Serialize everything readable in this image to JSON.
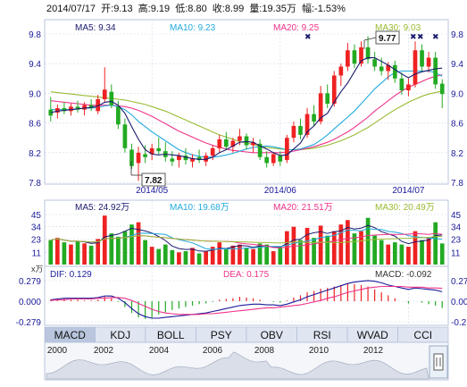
{
  "header": {
    "date": "2014/07/17",
    "open_label": "开:",
    "open": "9.13",
    "high_label": "高:",
    "high": "9.19",
    "low_label": "低:",
    "low": "8.80",
    "close_label": "收:",
    "close": "8.99",
    "volume_label": "量:",
    "volume": "19.35万",
    "change_label": "幅:",
    "change": "-1.53%"
  },
  "price_legend": {
    "ma5": "MA5: 9.34",
    "ma10": "MA10: 9.23",
    "ma20": "MA20: 9.25",
    "ma30": "MA30: 9.03"
  },
  "volume_legend": {
    "ma5": "MA5: 24.92万",
    "ma10": "MA10: 19.68万",
    "ma20": "MA20: 21.51万",
    "ma30": "MA30: 20.49万"
  },
  "macd_legend": {
    "dif": "DIF: 0.129",
    "dea": "DEA: 0.175",
    "macd": "MACD: -0.092",
    "unit": "x万"
  },
  "callouts": {
    "high": "9.77",
    "low": "7.82"
  },
  "tabs": [
    "MACD",
    "KDJ",
    "BOLL",
    "PSY",
    "OBV",
    "RSI",
    "WVAD",
    "CCI"
  ],
  "active_tab": "MACD",
  "timeline_years": [
    "2000",
    "2002",
    "2004",
    "2006",
    "2008",
    "2010",
    "2012"
  ],
  "colors": {
    "up": "#ee2222",
    "down": "#22aa22",
    "ma5": "#1a1a6e",
    "ma10": "#22aadd",
    "ma20": "#ee3388",
    "ma30": "#99bb33",
    "grid": "#cfd8ea",
    "axis_text": "#1a1a99",
    "tab_bg": "#dfe6f2",
    "tab_active": "#b9c6de"
  },
  "chart_data": [
    {
      "type": "candlestick",
      "title": "",
      "x_tick_labels": [
        "2014/05",
        "2014/06",
        "2014/07"
      ],
      "ylim": [
        7.8,
        9.8
      ],
      "y_ticks": [
        7.8,
        8.2,
        8.6,
        9.0,
        9.4,
        9.8
      ],
      "grid": true,
      "candles": [
        {
          "o": 8.78,
          "h": 8.95,
          "l": 8.62,
          "c": 8.7
        },
        {
          "o": 8.74,
          "h": 8.85,
          "l": 8.66,
          "c": 8.8
        },
        {
          "o": 8.8,
          "h": 8.88,
          "l": 8.72,
          "c": 8.76
        },
        {
          "o": 8.76,
          "h": 8.86,
          "l": 8.7,
          "c": 8.82
        },
        {
          "o": 8.82,
          "h": 8.9,
          "l": 8.74,
          "c": 8.78
        },
        {
          "o": 8.78,
          "h": 8.88,
          "l": 8.7,
          "c": 8.84
        },
        {
          "o": 8.84,
          "h": 8.92,
          "l": 8.76,
          "c": 8.8
        },
        {
          "o": 8.76,
          "h": 8.98,
          "l": 8.72,
          "c": 8.92
        },
        {
          "o": 8.92,
          "h": 9.35,
          "l": 8.88,
          "c": 9.05
        },
        {
          "o": 9.02,
          "h": 9.12,
          "l": 8.8,
          "c": 8.84
        },
        {
          "o": 8.82,
          "h": 8.9,
          "l": 8.52,
          "c": 8.58
        },
        {
          "o": 8.58,
          "h": 8.66,
          "l": 8.2,
          "c": 8.26
        },
        {
          "o": 8.24,
          "h": 8.32,
          "l": 7.98,
          "c": 8.02
        },
        {
          "o": 8.06,
          "h": 8.28,
          "l": 7.82,
          "c": 8.2
        },
        {
          "o": 8.18,
          "h": 8.3,
          "l": 8.06,
          "c": 8.14
        },
        {
          "o": 8.18,
          "h": 8.32,
          "l": 8.1,
          "c": 8.26
        },
        {
          "o": 8.26,
          "h": 8.4,
          "l": 8.18,
          "c": 8.22
        },
        {
          "o": 8.22,
          "h": 8.34,
          "l": 8.08,
          "c": 8.14
        },
        {
          "o": 8.12,
          "h": 8.22,
          "l": 8.02,
          "c": 8.08
        },
        {
          "o": 8.1,
          "h": 8.2,
          "l": 8.0,
          "c": 8.16
        },
        {
          "o": 8.16,
          "h": 8.26,
          "l": 8.04,
          "c": 8.1
        },
        {
          "o": 8.08,
          "h": 8.18,
          "l": 8.0,
          "c": 8.12
        },
        {
          "o": 8.14,
          "h": 8.24,
          "l": 8.06,
          "c": 8.1
        },
        {
          "o": 8.08,
          "h": 8.2,
          "l": 8.02,
          "c": 8.16
        },
        {
          "o": 8.16,
          "h": 8.3,
          "l": 8.1,
          "c": 8.26
        },
        {
          "o": 8.26,
          "h": 8.44,
          "l": 8.2,
          "c": 8.38
        },
        {
          "o": 8.38,
          "h": 8.48,
          "l": 8.24,
          "c": 8.28
        },
        {
          "o": 8.28,
          "h": 8.4,
          "l": 8.2,
          "c": 8.36
        },
        {
          "o": 8.36,
          "h": 8.52,
          "l": 8.3,
          "c": 8.42
        },
        {
          "o": 8.42,
          "h": 8.46,
          "l": 8.24,
          "c": 8.3
        },
        {
          "o": 8.3,
          "h": 8.4,
          "l": 8.2,
          "c": 8.34
        },
        {
          "o": 8.32,
          "h": 8.38,
          "l": 8.1,
          "c": 8.14
        },
        {
          "o": 8.14,
          "h": 8.22,
          "l": 8.0,
          "c": 8.06
        },
        {
          "o": 8.06,
          "h": 8.2,
          "l": 8.02,
          "c": 8.18
        },
        {
          "o": 8.16,
          "h": 8.22,
          "l": 8.02,
          "c": 8.08
        },
        {
          "o": 8.1,
          "h": 8.44,
          "l": 8.06,
          "c": 8.4
        },
        {
          "o": 8.4,
          "h": 8.62,
          "l": 8.34,
          "c": 8.56
        },
        {
          "o": 8.56,
          "h": 8.66,
          "l": 8.38,
          "c": 8.44
        },
        {
          "o": 8.44,
          "h": 8.8,
          "l": 8.4,
          "c": 8.72
        },
        {
          "o": 8.72,
          "h": 8.84,
          "l": 8.56,
          "c": 8.62
        },
        {
          "o": 8.62,
          "h": 9.1,
          "l": 8.58,
          "c": 9.0
        },
        {
          "o": 9.0,
          "h": 9.12,
          "l": 8.8,
          "c": 8.86
        },
        {
          "o": 8.86,
          "h": 9.3,
          "l": 8.82,
          "c": 9.24
        },
        {
          "o": 9.24,
          "h": 9.4,
          "l": 9.1,
          "c": 9.36
        },
        {
          "o": 9.36,
          "h": 9.68,
          "l": 9.3,
          "c": 9.58
        },
        {
          "o": 9.58,
          "h": 9.66,
          "l": 9.34,
          "c": 9.4
        },
        {
          "o": 9.4,
          "h": 9.7,
          "l": 9.36,
          "c": 9.62
        },
        {
          "o": 9.62,
          "h": 9.77,
          "l": 9.4,
          "c": 9.46
        },
        {
          "o": 9.46,
          "h": 9.56,
          "l": 9.3,
          "c": 9.36
        },
        {
          "o": 9.36,
          "h": 9.48,
          "l": 9.24,
          "c": 9.3
        },
        {
          "o": 9.3,
          "h": 9.42,
          "l": 9.18,
          "c": 9.38
        },
        {
          "o": 9.38,
          "h": 9.44,
          "l": 9.14,
          "c": 9.2
        },
        {
          "o": 9.2,
          "h": 9.28,
          "l": 8.98,
          "c": 9.04
        },
        {
          "o": 9.04,
          "h": 9.2,
          "l": 8.96,
          "c": 9.12
        },
        {
          "o": 9.12,
          "h": 9.7,
          "l": 9.08,
          "c": 9.58
        },
        {
          "o": 9.58,
          "h": 9.66,
          "l": 9.3,
          "c": 9.36
        },
        {
          "o": 9.36,
          "h": 9.56,
          "l": 9.28,
          "c": 9.48
        },
        {
          "o": 9.48,
          "h": 9.56,
          "l": 9.06,
          "c": 9.12
        },
        {
          "o": 9.13,
          "h": 9.19,
          "l": 8.8,
          "c": 8.99
        }
      ],
      "ma_series": [
        {
          "name": "MA5",
          "values": [
            8.74,
            8.76,
            8.77,
            8.78,
            8.79,
            8.8,
            8.81,
            8.83,
            8.88,
            8.89,
            8.84,
            8.73,
            8.55,
            8.38,
            8.24,
            8.18,
            8.17,
            8.18,
            8.17,
            8.16,
            8.14,
            8.12,
            8.11,
            8.11,
            8.14,
            8.2,
            8.24,
            8.29,
            8.34,
            8.35,
            8.34,
            8.29,
            8.25,
            8.2,
            8.16,
            8.17,
            8.25,
            8.33,
            8.48,
            8.56,
            8.67,
            8.73,
            8.88,
            9.02,
            9.14,
            9.29,
            9.44,
            9.48,
            9.48,
            9.43,
            9.38,
            9.32,
            9.26,
            9.21,
            9.26,
            9.29,
            9.31,
            9.33,
            9.34
          ]
        },
        {
          "name": "MA10",
          "values": [
            8.78,
            8.78,
            8.78,
            8.78,
            8.79,
            8.8,
            8.8,
            8.81,
            8.83,
            8.84,
            8.82,
            8.78,
            8.71,
            8.62,
            8.55,
            8.48,
            8.42,
            8.36,
            8.3,
            8.24,
            8.2,
            8.17,
            8.15,
            8.14,
            8.14,
            8.15,
            8.17,
            8.19,
            8.22,
            8.25,
            8.27,
            8.28,
            8.29,
            8.28,
            8.26,
            8.24,
            8.24,
            8.25,
            8.28,
            8.31,
            8.37,
            8.44,
            8.52,
            8.6,
            8.68,
            8.76,
            8.86,
            8.96,
            9.06,
            9.14,
            9.22,
            9.28,
            9.3,
            9.3,
            9.3,
            9.3,
            9.3,
            9.28,
            9.23
          ]
        },
        {
          "name": "MA20",
          "values": [
            8.9,
            8.89,
            8.88,
            8.87,
            8.86,
            8.85,
            8.84,
            8.84,
            8.84,
            8.84,
            8.83,
            8.82,
            8.8,
            8.77,
            8.73,
            8.69,
            8.64,
            8.59,
            8.54,
            8.49,
            8.45,
            8.41,
            8.37,
            8.33,
            8.3,
            8.27,
            8.25,
            8.23,
            8.22,
            8.21,
            8.2,
            8.2,
            8.2,
            8.2,
            8.2,
            8.21,
            8.22,
            8.24,
            8.26,
            8.28,
            8.31,
            8.34,
            8.38,
            8.43,
            8.48,
            8.54,
            8.61,
            8.68,
            8.76,
            8.83,
            8.9,
            8.97,
            9.03,
            9.08,
            9.12,
            9.16,
            9.2,
            9.23,
            9.25
          ]
        },
        {
          "name": "MA30",
          "values": [
            9.02,
            9.01,
            9.0,
            8.99,
            8.98,
            8.97,
            8.96,
            8.95,
            8.94,
            8.93,
            8.92,
            8.91,
            8.89,
            8.87,
            8.85,
            8.82,
            8.79,
            8.76,
            8.72,
            8.68,
            8.64,
            8.6,
            8.56,
            8.52,
            8.48,
            8.44,
            8.41,
            8.38,
            8.35,
            8.33,
            8.31,
            8.29,
            8.27,
            8.26,
            8.25,
            8.24,
            8.24,
            8.24,
            8.25,
            8.26,
            8.28,
            8.3,
            8.33,
            8.36,
            8.4,
            8.44,
            8.49,
            8.54,
            8.6,
            8.66,
            8.72,
            8.78,
            8.83,
            8.88,
            8.92,
            8.96,
            8.99,
            9.01,
            9.03
          ]
        }
      ]
    },
    {
      "type": "bar",
      "title": "",
      "ylabel": "万",
      "ylim": [
        0,
        45
      ],
      "y_ticks": [
        11,
        23,
        34,
        45
      ],
      "values": [
        22,
        24,
        20,
        18,
        21,
        19,
        17,
        23,
        44,
        28,
        25,
        30,
        36,
        38,
        22,
        16,
        14,
        18,
        13,
        11,
        12,
        15,
        10,
        12,
        16,
        20,
        14,
        17,
        18,
        15,
        14,
        19,
        18,
        12,
        16,
        30,
        34,
        22,
        33,
        24,
        35,
        26,
        30,
        36,
        40,
        28,
        30,
        42,
        26,
        22,
        18,
        20,
        18,
        16,
        30,
        22,
        24,
        38,
        19
      ]
    },
    {
      "type": "bar",
      "title": "",
      "ylim": [
        -0.279,
        0.279
      ],
      "y_ticks": [
        0.279,
        0.0,
        -0.279
      ],
      "values": [
        0.02,
        0.03,
        0.03,
        0.02,
        0.02,
        0.01,
        0.01,
        0.02,
        0.06,
        0.04,
        -0.01,
        -0.08,
        -0.16,
        -0.22,
        -0.24,
        -0.22,
        -0.18,
        -0.15,
        -0.12,
        -0.1,
        -0.08,
        -0.06,
        -0.04,
        -0.03,
        -0.01,
        0.02,
        0.03,
        0.04,
        0.06,
        0.05,
        0.04,
        0.02,
        0.0,
        -0.01,
        -0.02,
        0.01,
        0.05,
        0.08,
        0.12,
        0.14,
        0.17,
        0.18,
        0.2,
        0.22,
        0.24,
        0.23,
        0.22,
        0.2,
        0.16,
        0.12,
        0.08,
        0.04,
        0.0,
        -0.03,
        0.0,
        -0.02,
        -0.04,
        -0.06,
        -0.092
      ],
      "series": [
        {
          "name": "DIF",
          "values": [
            0.02,
            0.03,
            0.04,
            0.04,
            0.04,
            0.04,
            0.04,
            0.05,
            0.07,
            0.07,
            0.04,
            -0.02,
            -0.1,
            -0.17,
            -0.21,
            -0.23,
            -0.23,
            -0.22,
            -0.21,
            -0.2,
            -0.19,
            -0.18,
            -0.17,
            -0.16,
            -0.14,
            -0.12,
            -0.1,
            -0.08,
            -0.06,
            -0.05,
            -0.04,
            -0.04,
            -0.05,
            -0.05,
            -0.06,
            -0.04,
            -0.01,
            0.02,
            0.06,
            0.09,
            0.12,
            0.15,
            0.18,
            0.21,
            0.24,
            0.26,
            0.27,
            0.28,
            0.27,
            0.25,
            0.22,
            0.2,
            0.18,
            0.16,
            0.18,
            0.17,
            0.16,
            0.15,
            0.129
          ]
        },
        {
          "name": "DEA",
          "values": [
            0.01,
            0.02,
            0.02,
            0.03,
            0.03,
            0.03,
            0.03,
            0.04,
            0.04,
            0.05,
            0.05,
            0.04,
            0.01,
            -0.03,
            -0.07,
            -0.11,
            -0.14,
            -0.16,
            -0.17,
            -0.18,
            -0.18,
            -0.18,
            -0.18,
            -0.17,
            -0.17,
            -0.16,
            -0.15,
            -0.14,
            -0.13,
            -0.12,
            -0.11,
            -0.1,
            -0.09,
            -0.09,
            -0.08,
            -0.07,
            -0.06,
            -0.05,
            -0.03,
            -0.01,
            0.01,
            0.04,
            0.06,
            0.09,
            0.12,
            0.14,
            0.16,
            0.18,
            0.19,
            0.2,
            0.2,
            0.2,
            0.2,
            0.19,
            0.19,
            0.19,
            0.18,
            0.18,
            0.175
          ]
        }
      ]
    }
  ]
}
